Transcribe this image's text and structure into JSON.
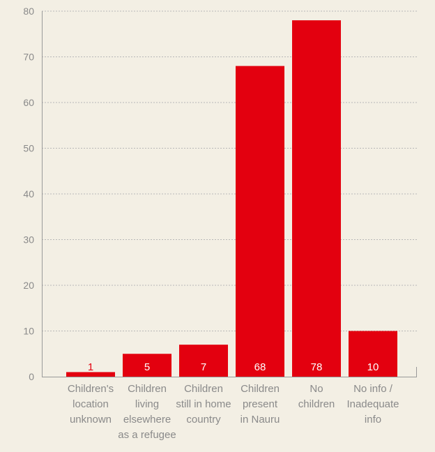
{
  "chart_data": {
    "type": "bar",
    "categories": [
      [
        "Children's",
        "location",
        "unknown"
      ],
      [
        "Children",
        "living",
        "elsewhere",
        "as a refugee"
      ],
      [
        "Children",
        "still in home",
        "country"
      ],
      [
        "Children",
        "present",
        "in Nauru"
      ],
      [
        "No",
        "children"
      ],
      [
        "No info /",
        "Inadequate",
        "info"
      ]
    ],
    "values": [
      1,
      5,
      7,
      68,
      78,
      10
    ],
    "data_labels": [
      "1",
      "5",
      "7",
      "68",
      "78",
      "10"
    ],
    "ylim": [
      0,
      80
    ],
    "yticks": [
      0,
      10,
      20,
      30,
      40,
      50,
      60,
      70,
      80
    ],
    "ytick_labels": [
      "0",
      "10",
      "20",
      "30",
      "40",
      "50",
      "60",
      "70",
      "80"
    ],
    "title": "",
    "xlabel": "",
    "ylabel": "",
    "grid": "horizontal-dashed",
    "colors": {
      "bar": "#e3000f",
      "label_inside": "#ffffff",
      "label_small_bar": "#e3000f",
      "axis": "#999999",
      "grid": "#b7b7b7",
      "tick_text": "#8a8a8a",
      "background": "#f3efe4"
    }
  }
}
